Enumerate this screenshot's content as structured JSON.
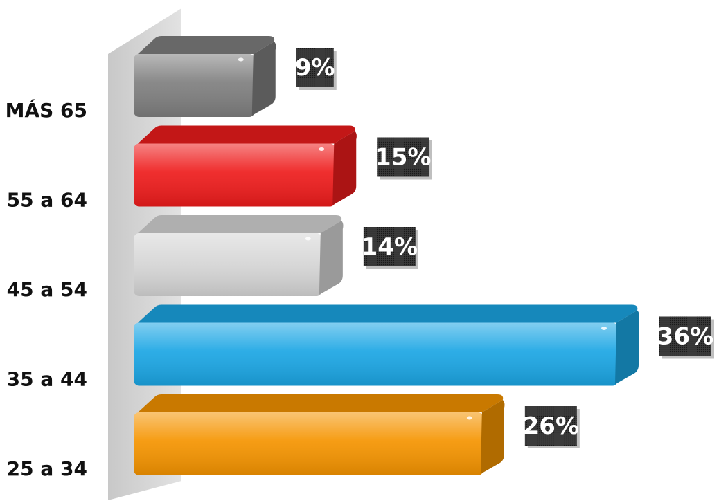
{
  "chart_data": {
    "type": "bar",
    "orientation": "horizontal",
    "title": "",
    "xlabel": "",
    "ylabel": "",
    "categories": [
      "MÁS 65",
      "55 a 64",
      "45 a 54",
      "35 a 44",
      "25 a 34"
    ],
    "values": [
      9,
      15,
      14,
      36,
      26
    ],
    "value_labels": [
      "9%",
      "15%",
      "14%",
      "36%",
      "26%"
    ],
    "unit": "%",
    "xlim": [
      0,
      40
    ],
    "grid": false,
    "legend": "none",
    "colors": [
      "#7f7f7f",
      "#ee1c1c",
      "#d6d6d6",
      "#1ba6e4",
      "#f59400"
    ]
  }
}
